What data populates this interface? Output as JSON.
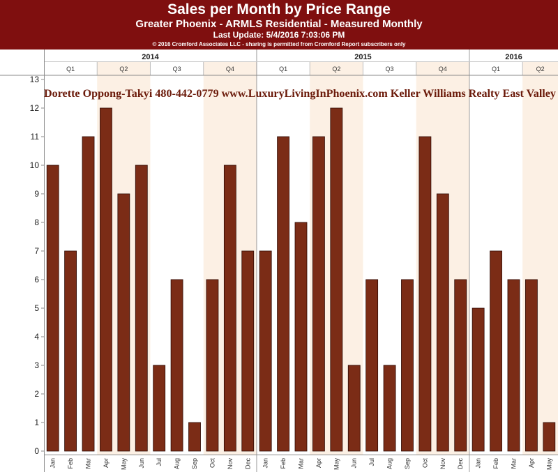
{
  "header": {
    "title": "Sales per Month by Price Range",
    "subtitle": "Greater Phoenix - ARMLS Residential - Measured Monthly",
    "last_update": "Last Update: 5/4/2016 7:03:06 PM",
    "copyright": "© 2016 Cromford Associates LLC - sharing is permitted from Cromford Report subscribers only"
  },
  "watermark": {
    "text": "Dorette Oppong-Takyi   480-442-0779   www.LuxuryLivingInPhoenix.com    Keller Williams Realty East Valley"
  },
  "colors": {
    "banner": "#7f0f0f",
    "bar": "#7b2c16",
    "bar_outline": "#2d0a04",
    "quarter_shade": "#fcf0e4",
    "watermark": "#6b1a0a"
  },
  "chart_data": {
    "type": "bar",
    "years": [
      {
        "label": "2014",
        "months": 12
      },
      {
        "label": "2015",
        "months": 12
      },
      {
        "label": "2016",
        "months": 5
      }
    ],
    "quarters": [
      {
        "label": "Q1",
        "months": 3,
        "shaded": false
      },
      {
        "label": "Q2",
        "months": 3,
        "shaded": true
      },
      {
        "label": "Q3",
        "months": 3,
        "shaded": false
      },
      {
        "label": "Q4",
        "months": 3,
        "shaded": true
      },
      {
        "label": "Q1",
        "months": 3,
        "shaded": false
      },
      {
        "label": "Q2",
        "months": 3,
        "shaded": true
      },
      {
        "label": "Q3",
        "months": 3,
        "shaded": false
      },
      {
        "label": "Q4",
        "months": 3,
        "shaded": true
      },
      {
        "label": "Q1",
        "months": 3,
        "shaded": false
      },
      {
        "label": "Q2",
        "months": 2,
        "shaded": true
      }
    ],
    "categories": [
      "Jan",
      "Feb",
      "Mar",
      "Apr",
      "May",
      "Jun",
      "Jul",
      "Aug",
      "Sep",
      "Oct",
      "Nov",
      "Dec",
      "Jan",
      "Feb",
      "Mar",
      "Apr",
      "May",
      "Jun",
      "Jul",
      "Aug",
      "Sep",
      "Oct",
      "Nov",
      "Dec",
      "Jan",
      "Feb",
      "Mar",
      "Apr",
      "May"
    ],
    "values": [
      10,
      7,
      11,
      12,
      9,
      10,
      3,
      6,
      1,
      6,
      10,
      7,
      7,
      11,
      8,
      11,
      12,
      3,
      6,
      3,
      6,
      11,
      9,
      6,
      5,
      7,
      6,
      6,
      1
    ],
    "ylim": [
      0,
      13
    ],
    "yticks": [
      "0",
      "1",
      "2",
      "3",
      "4",
      "5",
      "6",
      "7",
      "8",
      "9",
      "10",
      "11",
      "12",
      "13"
    ],
    "grid": false,
    "legend": "none"
  }
}
